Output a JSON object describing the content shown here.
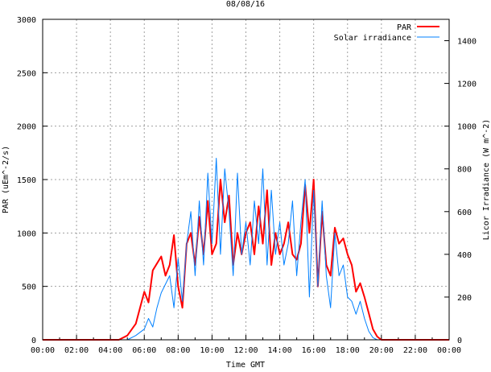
{
  "chart_data": {
    "type": "line",
    "title": "08/08/16",
    "xlabel": "Time GMT",
    "ylabel": "PAR (uEm^-2/s)",
    "y2label": "Licor Irradiance (W m^-2)",
    "xlim": [
      0,
      24
    ],
    "ylim": [
      0,
      3000
    ],
    "y2lim": [
      0,
      1500
    ],
    "grid": true,
    "legend_position": "top-right",
    "x_ticks": [
      "00:00",
      "02:00",
      "04:00",
      "06:00",
      "08:00",
      "10:00",
      "12:00",
      "14:00",
      "16:00",
      "18:00",
      "20:00",
      "22:00",
      "00:00"
    ],
    "y_ticks": [
      "0",
      "500",
      "1000",
      "1500",
      "2000",
      "2500",
      "3000"
    ],
    "y2_ticks": [
      "0",
      "200",
      "400",
      "600",
      "800",
      "1000",
      "1200",
      "1400"
    ],
    "series": [
      {
        "name": "PAR",
        "color": "#ff0000",
        "axis": "left",
        "x": [
          0,
          4.5,
          5,
          5.5,
          6,
          6.25,
          6.5,
          7,
          7.25,
          7.5,
          7.75,
          8,
          8.25,
          8.5,
          8.75,
          9,
          9.25,
          9.5,
          9.75,
          10,
          10.25,
          10.5,
          10.75,
          11,
          11.25,
          11.5,
          11.75,
          12,
          12.25,
          12.5,
          12.75,
          13,
          13.25,
          13.5,
          13.75,
          14,
          14.25,
          14.5,
          14.75,
          15,
          15.25,
          15.5,
          15.75,
          16,
          16.25,
          16.5,
          16.75,
          17,
          17.25,
          17.5,
          17.75,
          18,
          18.25,
          18.5,
          18.75,
          19,
          19.25,
          19.5,
          19.75,
          20,
          24
        ],
        "values": [
          0,
          0,
          40,
          150,
          450,
          350,
          650,
          780,
          600,
          700,
          980,
          500,
          300,
          900,
          1000,
          700,
          1150,
          800,
          1300,
          800,
          900,
          1500,
          1100,
          1350,
          700,
          1000,
          800,
          1000,
          1100,
          800,
          1250,
          900,
          1400,
          700,
          1000,
          800,
          900,
          1100,
          800,
          750,
          900,
          1450,
          1000,
          1500,
          500,
          1200,
          700,
          600,
          1050,
          900,
          950,
          800,
          700,
          450,
          530,
          400,
          250,
          100,
          30,
          0,
          0
        ]
      },
      {
        "name": "Solar irradiance",
        "color": "#0080ff",
        "axis": "right",
        "x": [
          0,
          5,
          5.5,
          6,
          6.25,
          6.5,
          6.75,
          7,
          7.5,
          7.75,
          8,
          8.25,
          8.5,
          8.75,
          9,
          9.25,
          9.5,
          9.75,
          10,
          10.25,
          10.5,
          10.75,
          11,
          11.25,
          11.5,
          11.75,
          12,
          12.25,
          12.5,
          12.75,
          13,
          13.25,
          13.5,
          13.75,
          14,
          14.25,
          14.5,
          14.75,
          15,
          15.25,
          15.5,
          15.75,
          16,
          16.25,
          16.5,
          16.75,
          17,
          17.25,
          17.5,
          17.75,
          18,
          18.25,
          18.5,
          18.75,
          19,
          19.25,
          19.5,
          19.75,
          24
        ],
        "values": [
          0,
          0,
          20,
          50,
          100,
          60,
          150,
          220,
          300,
          150,
          380,
          180,
          450,
          600,
          300,
          650,
          350,
          780,
          450,
          850,
          400,
          800,
          600,
          300,
          780,
          400,
          550,
          350,
          650,
          450,
          800,
          350,
          700,
          400,
          550,
          350,
          450,
          650,
          300,
          550,
          750,
          200,
          700,
          250,
          650,
          300,
          150,
          500,
          300,
          350,
          200,
          180,
          120,
          180,
          100,
          40,
          10,
          0,
          0
        ]
      }
    ]
  }
}
